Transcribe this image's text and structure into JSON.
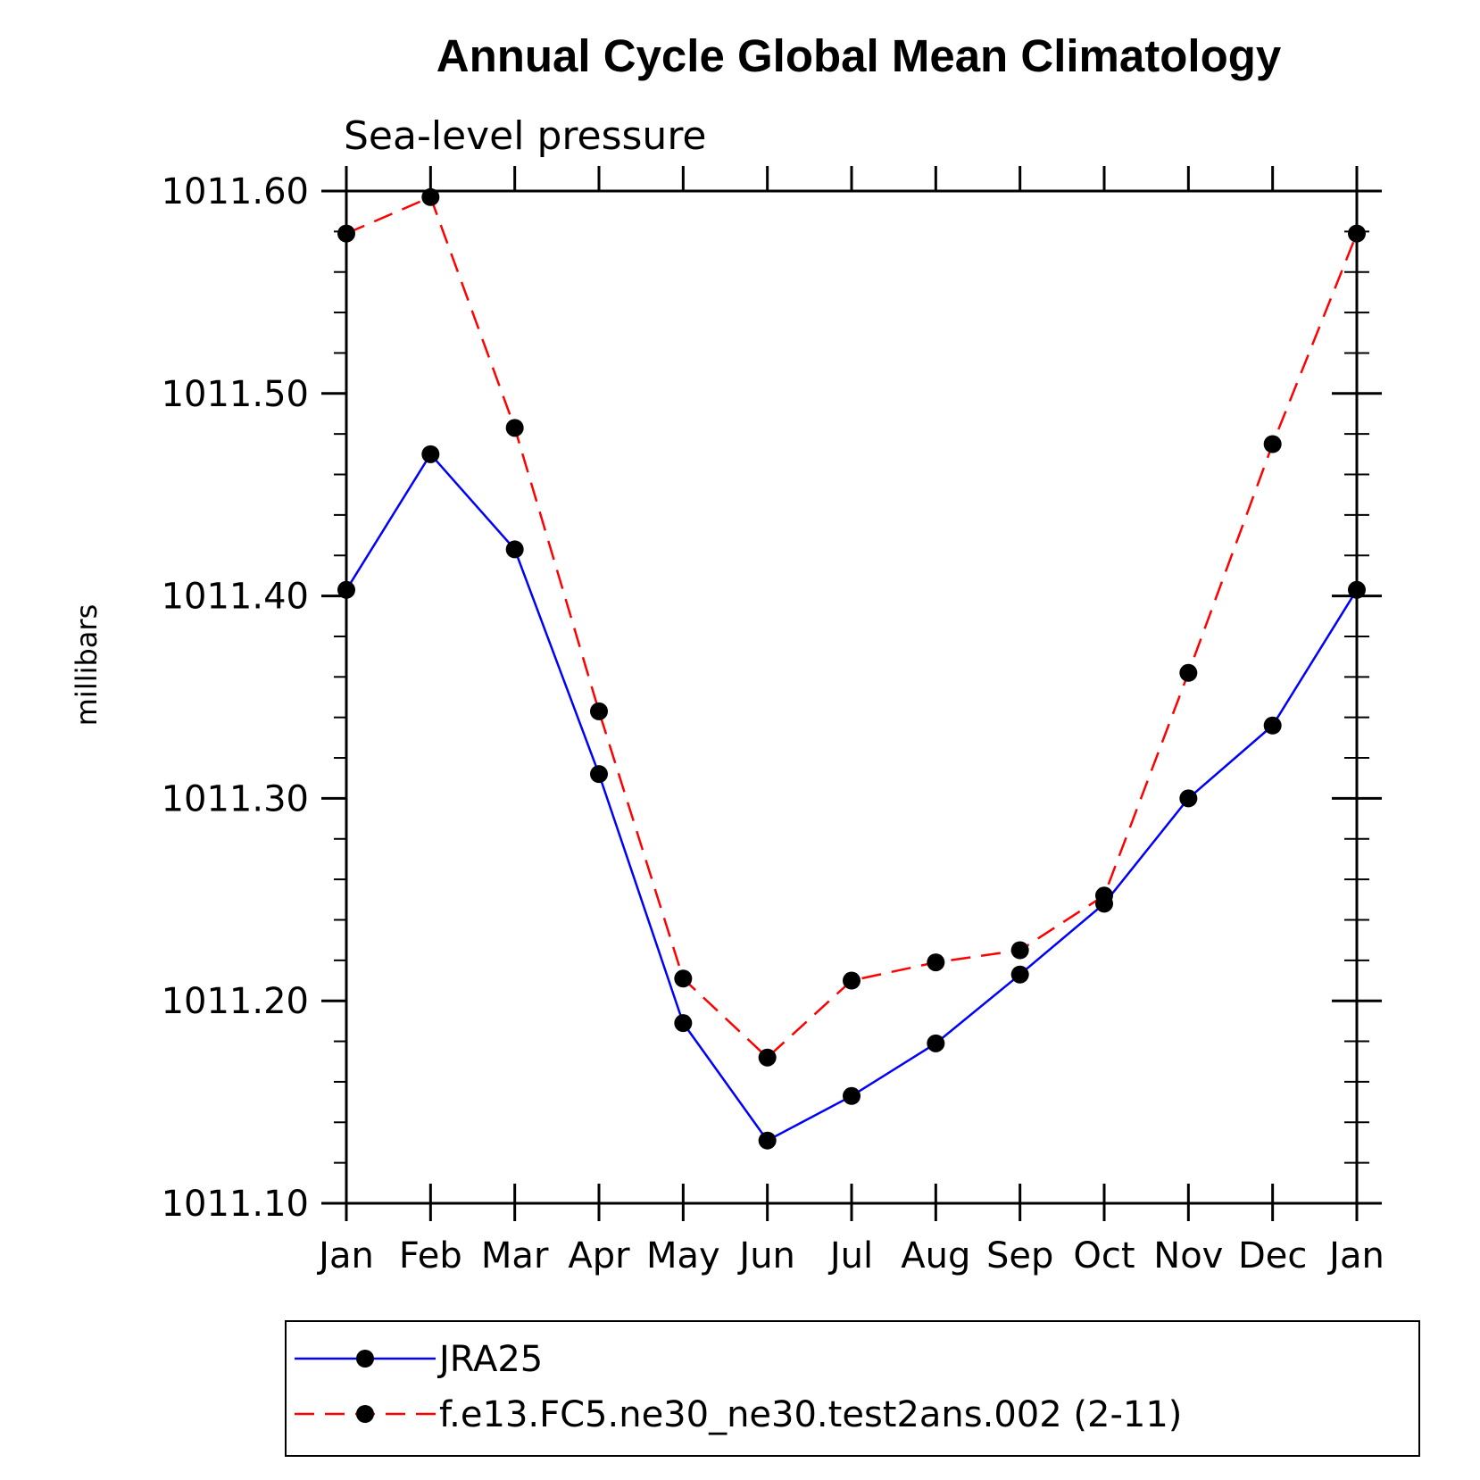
{
  "chart_data": {
    "type": "line",
    "title": "Annual Cycle Global Mean Climatology",
    "subtitle": "Sea-level pressure",
    "xlabel": "",
    "ylabel": "millibars",
    "categories": [
      "Jan",
      "Feb",
      "Mar",
      "Apr",
      "May",
      "Jun",
      "Jul",
      "Aug",
      "Sep",
      "Oct",
      "Nov",
      "Dec",
      "Jan"
    ],
    "ylim": [
      1011.1,
      1011.6
    ],
    "yticks": [
      "1011.10",
      "1011.20",
      "1011.30",
      "1011.40",
      "1011.50",
      "1011.60"
    ],
    "ytick_values": [
      1011.1,
      1011.2,
      1011.3,
      1011.4,
      1011.5,
      1011.6
    ],
    "grid": false,
    "legend_position": "bottom",
    "series": [
      {
        "name": "JRA25",
        "color": "#0000ff",
        "line_style": "solid",
        "values": [
          1011.403,
          1011.47,
          1011.423,
          1011.312,
          1011.189,
          1011.131,
          1011.153,
          1011.179,
          1011.213,
          1011.248,
          1011.3,
          1011.336,
          1011.403
        ]
      },
      {
        "name": "f.e13.FC5.ne30_ne30.test2ans.002 (2-11)",
        "color": "#ff0000",
        "line_style": "dashed",
        "values": [
          1011.579,
          1011.597,
          1011.483,
          1011.343,
          1011.211,
          1011.172,
          1011.21,
          1011.219,
          1011.225,
          1011.252,
          1011.362,
          1011.475,
          1011.579
        ]
      }
    ]
  }
}
